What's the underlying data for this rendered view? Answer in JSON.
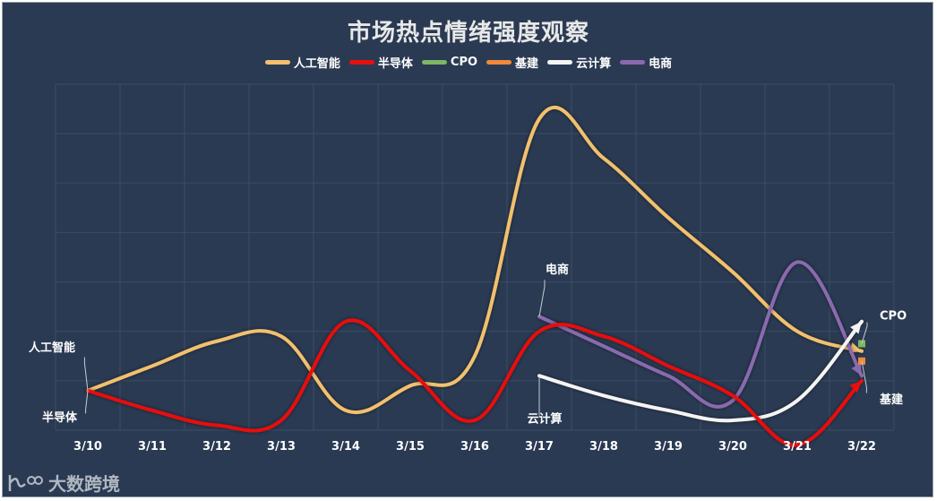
{
  "chart_data": {
    "type": "line",
    "title": "市场热点情绪强度观察",
    "categories": [
      "3/10",
      "3/11",
      "3/12",
      "3/13",
      "3/14",
      "3/15",
      "3/16",
      "3/17",
      "3/18",
      "3/19",
      "3/20",
      "3/21",
      "3/22"
    ],
    "ylim": [
      0,
      70
    ],
    "grid": true,
    "legend": "top-center",
    "series": [
      {
        "name": "人工智能",
        "color": "#f2c06e",
        "values": [
          8,
          13,
          18,
          19,
          4,
          9,
          15,
          63,
          55,
          43,
          32,
          20,
          16
        ]
      },
      {
        "name": "半导体",
        "color": "#e80f10",
        "values": [
          8,
          4,
          1,
          2,
          22,
          12,
          2,
          20,
          19,
          13,
          7,
          -3,
          10
        ]
      },
      {
        "name": "CPO",
        "color": "#7cb863",
        "values": [
          null,
          null,
          null,
          null,
          null,
          null,
          null,
          null,
          null,
          null,
          null,
          null,
          17.5
        ]
      },
      {
        "name": "基建",
        "color": "#ef8a3a",
        "values": [
          null,
          null,
          null,
          null,
          null,
          null,
          null,
          null,
          null,
          null,
          null,
          null,
          14
        ]
      },
      {
        "name": "云计算",
        "color": "#f4f4f4",
        "values": [
          null,
          null,
          null,
          null,
          null,
          null,
          null,
          11,
          7,
          4,
          2,
          6,
          22
        ]
      },
      {
        "name": "电商",
        "color": "#8a6aae",
        "values": [
          null,
          null,
          null,
          null,
          null,
          null,
          null,
          23,
          17,
          11,
          6,
          34,
          11
        ]
      }
    ],
    "annotations": [
      {
        "text": "人工智能",
        "series": "人工智能",
        "at": "3/10"
      },
      {
        "text": "半导体",
        "series": "半导体",
        "at": "3/10"
      },
      {
        "text": "电商",
        "series": "电商",
        "at": "3/17"
      },
      {
        "text": "云计算",
        "series": "云计算",
        "at": "3/17"
      },
      {
        "text": "CPO",
        "series": "CPO",
        "at": "3/22"
      },
      {
        "text": "基建",
        "series": "基建",
        "at": "3/22"
      }
    ]
  },
  "watermark": {
    "text": "大数跨境"
  }
}
